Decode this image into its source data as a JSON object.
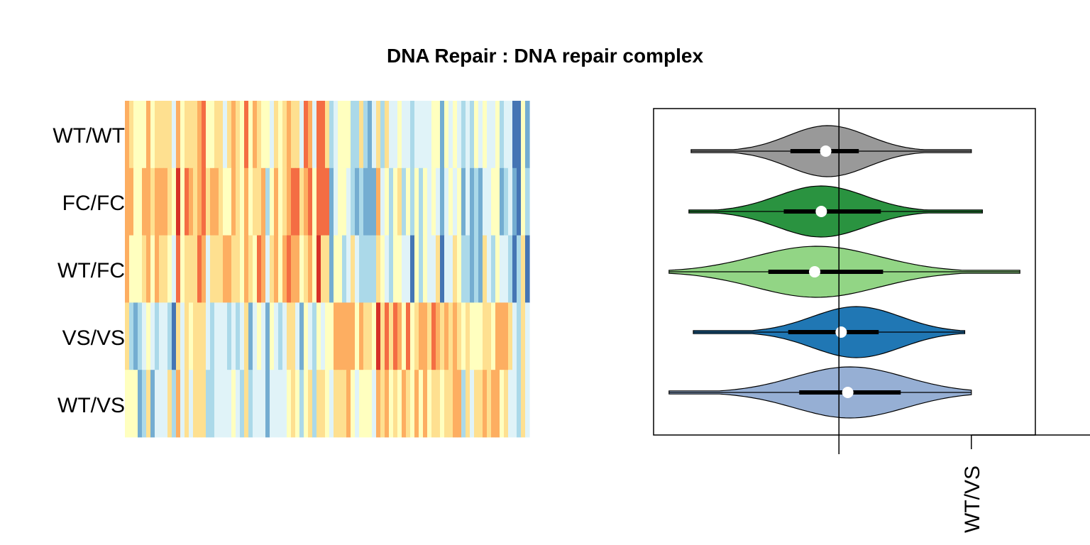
{
  "chart_data": [
    {
      "type": "heatmap",
      "title": "DNA Repair : DNA repair complex",
      "rows": [
        "WT/WT",
        "FC/FC",
        "WT/FC",
        "VS/VS",
        "WT/VS"
      ],
      "n_columns": 95,
      "color_scale": [
        "#4575b4",
        "#74add1",
        "#abd9e9",
        "#e0f3f8",
        "#ffffbf",
        "#fee090",
        "#fdae61",
        "#f46d43",
        "#d73027"
      ],
      "value_range": [
        -2,
        2
      ],
      "row_bias": [
        0.3,
        0.45,
        0.35,
        -0.35,
        -0.15
      ]
    },
    {
      "type": "violin",
      "series": [
        {
          "color": "#999999",
          "min": -0.67,
          "q1": -0.22,
          "median": -0.06,
          "q3": 0.09,
          "max": 0.6,
          "spread": 0.18,
          "center": -0.05
        },
        {
          "color": "#2a9340",
          "min": -0.68,
          "q1": -0.25,
          "median": -0.08,
          "q3": 0.19,
          "max": 0.65,
          "spread": 0.2,
          "center": -0.08
        },
        {
          "color": "#92d585",
          "min": -0.77,
          "q1": -0.32,
          "median": -0.11,
          "q3": 0.2,
          "max": 0.82,
          "spread": 0.28,
          "center": -0.1
        },
        {
          "color": "#2077b4",
          "min": -0.66,
          "q1": -0.23,
          "median": 0.01,
          "q3": 0.18,
          "max": 0.57,
          "spread": 0.2,
          "center": 0.08
        },
        {
          "color": "#96afd4",
          "min": -0.77,
          "q1": -0.18,
          "median": 0.04,
          "q3": 0.28,
          "max": 0.6,
          "spread": 0.25,
          "center": 0.05
        }
      ],
      "xlim": [
        -0.84,
        0.89
      ],
      "reference_line": 0,
      "tick_value": 0.6,
      "tick_label": "WT/VS"
    }
  ]
}
